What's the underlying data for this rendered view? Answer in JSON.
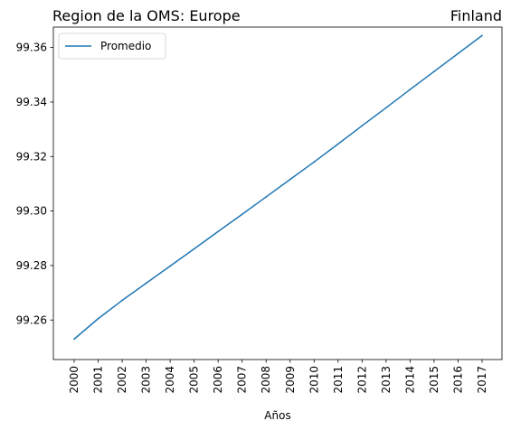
{
  "chart_data": {
    "type": "line",
    "title_left": "Region de la OMS: Europe",
    "title_right": "Finland",
    "xlabel": "Años",
    "ylabel": "",
    "x": [
      "2000",
      "2001",
      "2002",
      "2003",
      "2004",
      "2005",
      "2006",
      "2007",
      "2008",
      "2009",
      "2010",
      "2011",
      "2012",
      "2013",
      "2014",
      "2015",
      "2016",
      "2017"
    ],
    "ylim": [
      99.2455,
      99.3675
    ],
    "yticks": [
      99.26,
      99.28,
      99.3,
      99.32,
      99.34,
      99.36
    ],
    "ytick_labels": [
      "99.26",
      "99.28",
      "99.30",
      "99.32",
      "99.34",
      "99.36"
    ],
    "series": [
      {
        "name": "Promedio",
        "color": "#1f77b4",
        "values": [
          99.253,
          99.2605,
          99.2672,
          99.2735,
          99.2798,
          99.2861,
          99.2925,
          99.2988,
          99.3052,
          99.3116,
          99.318,
          99.3246,
          99.3313,
          99.3379,
          99.3446,
          99.3512,
          99.3578,
          99.3644
        ]
      }
    ],
    "legend_position": "top-left",
    "grid": false
  }
}
